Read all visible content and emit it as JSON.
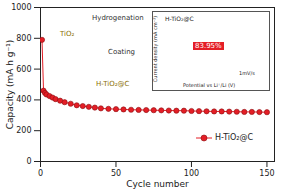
{
  "chart_data": {
    "type": "line",
    "x_label": "Cycle number",
    "y_label": "Capacity (mA h g⁻¹)",
    "x": [
      1,
      2,
      3,
      4,
      6,
      8,
      10,
      13,
      16,
      20,
      24,
      28,
      32,
      36,
      40,
      45,
      50,
      55,
      60,
      65,
      70,
      75,
      80,
      85,
      90,
      95,
      100,
      105,
      110,
      115,
      120,
      125,
      130,
      135,
      140,
      145,
      150
    ],
    "series": [
      {
        "name": "H-TiO₂@C",
        "color": "#e41e26",
        "marker": "circle",
        "values": [
          790,
          460,
          445,
          435,
          425,
          415,
          405,
          395,
          385,
          375,
          365,
          360,
          355,
          350,
          345,
          342,
          340,
          338,
          336,
          335,
          334,
          333,
          332,
          331,
          330,
          330,
          328,
          327,
          326,
          325,
          325,
          324,
          323,
          322,
          322,
          321,
          320
        ]
      }
    ],
    "xlim": [
      0,
      155
    ],
    "xticks": [
      0,
      50,
      100,
      150
    ],
    "ylim": [
      0,
      1000
    ],
    "yticks": [
      0,
      200,
      400,
      600,
      800,
      1000
    ],
    "legend": "lower right",
    "annotations": [
      "TiO₂",
      "Hydrogenation",
      "Coating",
      "H-TiO₂@C"
    ],
    "inset": {
      "title": "H-TiO₂@C",
      "x_label": "Potential vs Li⁺/Li (V)",
      "y_label": "Current density (mA cm⁻²)",
      "annotations": [
        "83.95%",
        "1mV/s"
      ]
    }
  }
}
